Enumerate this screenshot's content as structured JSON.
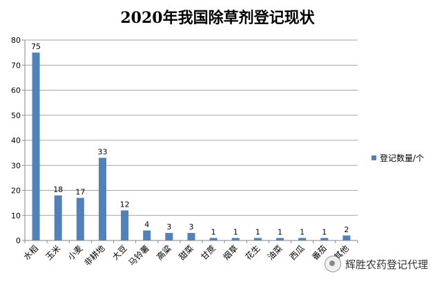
{
  "chart_data": {
    "type": "bar",
    "title": "2020年我国除草剂登记现状",
    "categories": [
      "水稻",
      "玉米",
      "小麦",
      "非耕地",
      "大豆",
      "马铃薯",
      "高粱",
      "甜菜",
      "甘蔗",
      "烟草",
      "花生",
      "油菜",
      "西瓜",
      "番茄",
      "其他"
    ],
    "series": [
      {
        "name": "登记数量/个",
        "values": [
          75,
          18,
          17,
          33,
          12,
          4,
          3,
          3,
          1,
          1,
          1,
          1,
          1,
          1,
          2
        ],
        "color": "#4f81bd"
      }
    ],
    "ylim": [
      0,
      80
    ],
    "yticks": [
      0,
      10,
      20,
      30,
      40,
      50,
      60,
      70,
      80
    ],
    "grid": true,
    "legend_position": "right"
  },
  "watermark": {
    "text": "辉胜农药登记代理"
  }
}
